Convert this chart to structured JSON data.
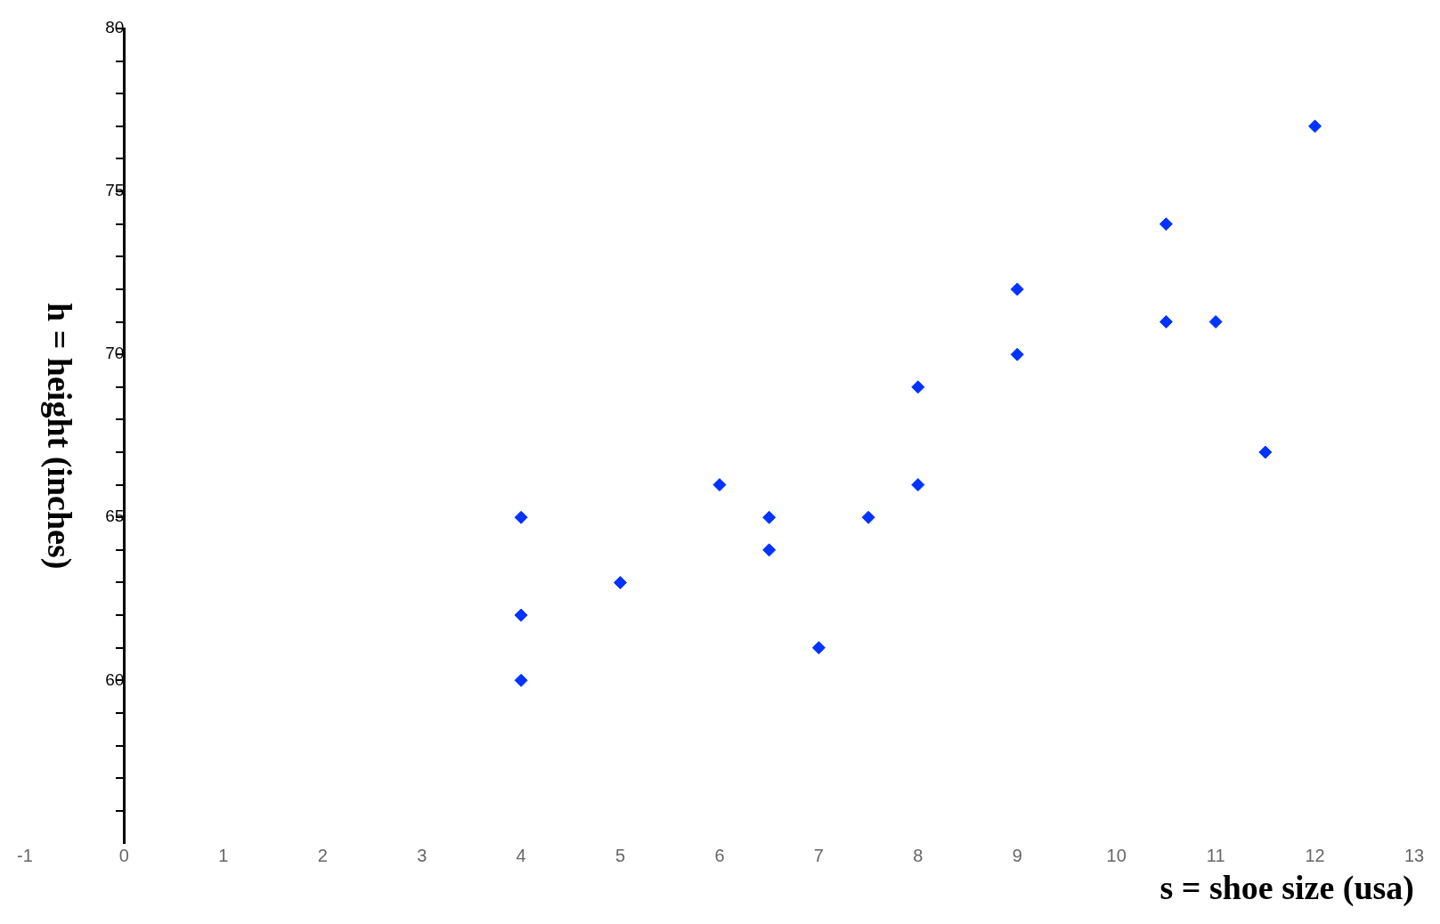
{
  "chart_data": {
    "type": "scatter",
    "xlabel": "s = shoe size (usa)",
    "ylabel": "h = height (inches)",
    "x": [
      4,
      4,
      4,
      5,
      6,
      6.5,
      6.5,
      7,
      7.5,
      8,
      8,
      9,
      9,
      10.5,
      10.5,
      11,
      11.5,
      12
    ],
    "series": [
      {
        "color": "#0033ff",
        "values": [
          65,
          62,
          60,
          63,
          66,
          65,
          64,
          61,
          65,
          69,
          66,
          72,
          70,
          74,
          71,
          71,
          67,
          77
        ]
      }
    ],
    "marker": "diamond",
    "xlim": [
      -1,
      13
    ],
    "xticks": [
      -1,
      0,
      1,
      2,
      3,
      4,
      5,
      6,
      7,
      8,
      9,
      10,
      11,
      12,
      13
    ],
    "ylim": [
      55,
      80
    ],
    "yticks": [
      {
        "value": 56,
        "label": null
      },
      {
        "value": 57,
        "label": null
      },
      {
        "value": 58,
        "label": null
      },
      {
        "value": 59,
        "label": null
      },
      60,
      {
        "value": 61,
        "label": null
      },
      {
        "value": 62,
        "label": null
      },
      {
        "value": 63,
        "label": null
      },
      {
        "value": 64,
        "label": null
      },
      65,
      {
        "value": 66,
        "label": null
      },
      {
        "value": 67,
        "label": null
      },
      {
        "value": 68,
        "label": null
      },
      {
        "value": 69,
        "label": null
      },
      70,
      {
        "value": 71,
        "label": null
      },
      {
        "value": 72,
        "label": null
      },
      {
        "value": 73,
        "label": null
      },
      {
        "value": 74,
        "label": null
      },
      75,
      {
        "value": 76,
        "label": null
      },
      {
        "value": 77,
        "label": null
      },
      {
        "value": 78,
        "label": null
      },
      {
        "value": 79,
        "label": null
      },
      80
    ],
    "grid": false,
    "legend": false
  }
}
